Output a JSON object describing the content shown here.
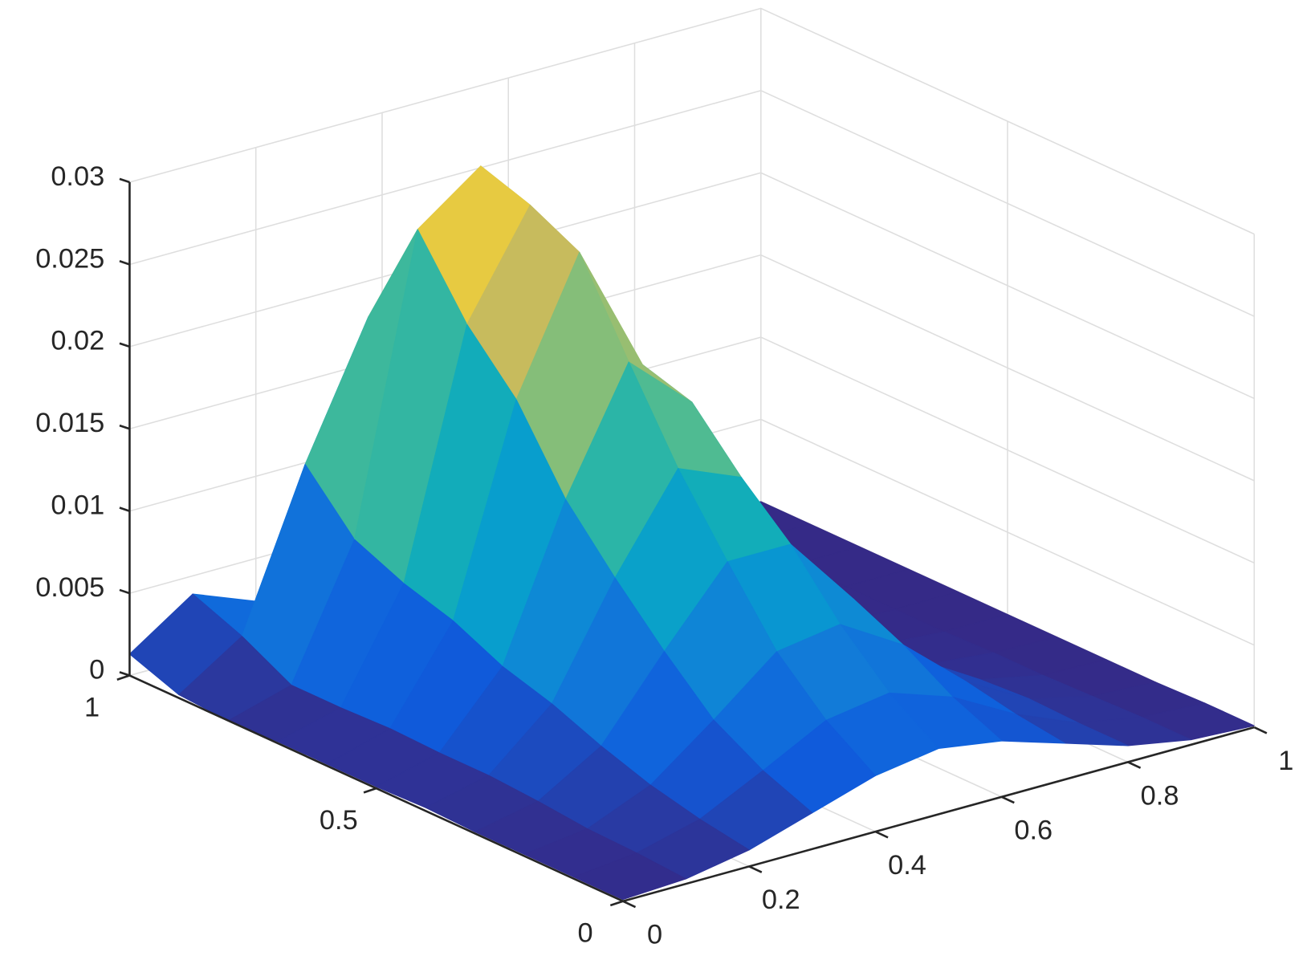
{
  "chart_data": {
    "type": "surface",
    "x": [
      0,
      0.1,
      0.2,
      0.3,
      0.4,
      0.5,
      0.6,
      0.7,
      0.8,
      0.9,
      1
    ],
    "y": [
      0,
      0.1,
      0.2,
      0.3,
      0.4,
      0.5,
      0.6,
      0.7,
      0.8,
      0.9,
      1
    ],
    "z": [
      [
        0.0001,
        0.0003,
        0.001,
        0.0022,
        0.0034,
        0.004,
        0.0034,
        0.0022,
        0.001,
        0.0003,
        0.0001
      ],
      [
        0.0001,
        0.0005,
        0.0015,
        0.0034,
        0.0054,
        0.006,
        0.0047,
        0.0026,
        0.001,
        0.0003,
        0.0001
      ],
      [
        0.0001,
        0.0006,
        0.0022,
        0.0051,
        0.0082,
        0.0088,
        0.0065,
        0.0032,
        0.0011,
        0.0002,
        0
      ],
      [
        0.0001,
        0.0009,
        0.0032,
        0.0079,
        0.0123,
        0.0123,
        0.0079,
        0.0032,
        0.0009,
        0.0001,
        0
      ],
      [
        0.0002,
        0.0011,
        0.0044,
        0.011,
        0.0166,
        0.015,
        0.0081,
        0.0027,
        0.0005,
        0.0001,
        0
      ],
      [
        0.0001,
        0.0011,
        0.0053,
        0.0144,
        0.0217,
        0.0182,
        0.0084,
        0.0022,
        0.0003,
        0,
        0
      ],
      [
        0.0001,
        0.0012,
        0.0067,
        0.0191,
        0.027,
        0.0191,
        0.0067,
        0.0012,
        0.0001,
        0,
        0
      ],
      [
        0.0001,
        0.0011,
        0.0076,
        0.0223,
        0.0285,
        0.016,
        0.0039,
        0.0004,
        0,
        0,
        0
      ],
      [
        0,
        0.0011,
        0.0089,
        0.0267,
        0.0295,
        0.012,
        0.0018,
        0.0001,
        0,
        0,
        0
      ],
      [
        0.0002,
        0.0027,
        0.0121,
        0.02,
        0.0121,
        0.0027,
        0.0002,
        0,
        0,
        0,
        0
      ],
      [
        0.0013,
        0.0039,
        0.0024,
        0.0003,
        0,
        0,
        0,
        0,
        0,
        0,
        0
      ]
    ],
    "xlim": [
      0,
      1
    ],
    "ylim": [
      0,
      1
    ],
    "zlim": [
      0,
      0.03
    ],
    "xticks": [
      0,
      0.2,
      0.4,
      0.6,
      0.8,
      1
    ],
    "yticks": [
      0,
      0.5,
      1
    ],
    "zticks": [
      0,
      0.005,
      0.01,
      0.015,
      0.02,
      0.025,
      0.03
    ],
    "grid": true,
    "colormap": "parula"
  }
}
